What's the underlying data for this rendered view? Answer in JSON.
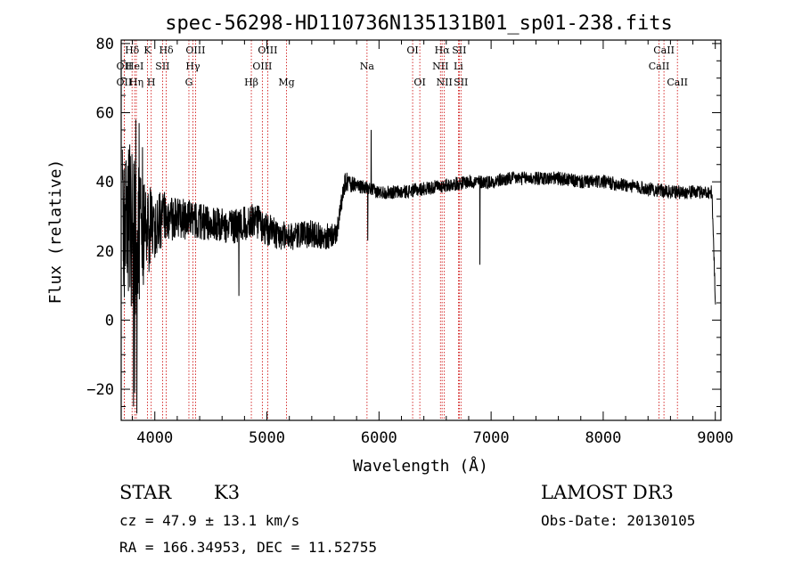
{
  "chart_data": {
    "type": "line",
    "title": "spec-56298-HD110736N135131B01_sp01-238.fits",
    "xlabel": "Wavelength (Å)",
    "ylabel": "Flux (relative)",
    "xlim": [
      3700,
      9050
    ],
    "ylim": [
      -29,
      81
    ],
    "x_ticks": [
      4000,
      5000,
      6000,
      7000,
      8000,
      9000
    ],
    "y_ticks": [
      -20,
      0,
      20,
      40,
      60,
      80
    ],
    "x_tick_labels": [
      "4000",
      "5000",
      "6000",
      "7000",
      "8000",
      "9000"
    ],
    "y_tick_labels": [
      "−20",
      "0",
      "20",
      "40",
      "60",
      "80"
    ],
    "spectrum_anchors": [
      [
        3700,
        30,
        24
      ],
      [
        3800,
        25,
        26
      ],
      [
        3900,
        25,
        16
      ],
      [
        4000,
        28,
        10
      ],
      [
        4100,
        30,
        7
      ],
      [
        4300,
        29,
        6
      ],
      [
        4500,
        28,
        5
      ],
      [
        4700,
        27,
        5
      ],
      [
        4900,
        29,
        5
      ],
      [
        5000,
        26,
        5
      ],
      [
        5200,
        24,
        4
      ],
      [
        5400,
        25,
        4
      ],
      [
        5550,
        24,
        4
      ],
      [
        5620,
        25,
        3
      ],
      [
        5660,
        33,
        3
      ],
      [
        5700,
        40,
        3
      ],
      [
        5800,
        39,
        2
      ],
      [
        5900,
        38,
        2
      ],
      [
        6000,
        37,
        2
      ],
      [
        6200,
        37,
        2
      ],
      [
        6400,
        38,
        2
      ],
      [
        6600,
        39,
        2
      ],
      [
        6800,
        40,
        2
      ],
      [
        7000,
        40,
        2
      ],
      [
        7200,
        41,
        2
      ],
      [
        7400,
        41,
        2
      ],
      [
        7600,
        41,
        2
      ],
      [
        7800,
        40,
        2
      ],
      [
        8000,
        40,
        2
      ],
      [
        8200,
        39,
        2
      ],
      [
        8400,
        38,
        2
      ],
      [
        8600,
        37,
        2
      ],
      [
        8800,
        37,
        2
      ],
      [
        8970,
        37,
        2
      ],
      [
        9000,
        6,
        2
      ]
    ],
    "spikes": [
      [
        3830,
        58
      ],
      [
        3860,
        57
      ],
      [
        3890,
        50
      ],
      [
        3820,
        -21
      ],
      [
        3810,
        -25
      ],
      [
        3840,
        -27
      ],
      [
        4750,
        7
      ],
      [
        5900,
        23
      ],
      [
        5930,
        55
      ],
      [
        6900,
        16
      ]
    ],
    "lines": [
      {
        "label": "Hδ",
        "wave": 3797,
        "row": 0
      },
      {
        "label": "OII",
        "wave": 3727,
        "row": 1
      },
      {
        "label": "OII",
        "wave": 3727,
        "row": 2
      },
      {
        "label": "HeI",
        "wave": 3820,
        "row": 1
      },
      {
        "label": "Hη",
        "wave": 3835,
        "row": 2
      },
      {
        "label": "K",
        "wave": 3934,
        "row": 0
      },
      {
        "label": "SII",
        "wave": 4069,
        "row": 1
      },
      {
        "label": "H",
        "wave": 3968,
        "row": 2
      },
      {
        "label": "Hδ",
        "wave": 4102,
        "row": 0
      },
      {
        "label": "OIII",
        "wave": 4363,
        "row": 0
      },
      {
        "label": "Hγ",
        "wave": 4340,
        "row": 1
      },
      {
        "label": "G",
        "wave": 4304,
        "row": 2
      },
      {
        "label": "Hβ",
        "wave": 4861,
        "row": 2
      },
      {
        "label": "OIII",
        "wave": 5007,
        "row": 0
      },
      {
        "label": "OIII",
        "wave": 4959,
        "row": 1
      },
      {
        "label": "Mg",
        "wave": 5175,
        "row": 2
      },
      {
        "label": "Na",
        "wave": 5893,
        "row": 1
      },
      {
        "label": "OI",
        "wave": 6300,
        "row": 0
      },
      {
        "label": "OI",
        "wave": 6364,
        "row": 2
      },
      {
        "label": "Hα",
        "wave": 6563,
        "row": 0
      },
      {
        "label": "SII",
        "wave": 6716,
        "row": 0
      },
      {
        "label": "NII",
        "wave": 6548,
        "row": 1
      },
      {
        "label": "Li",
        "wave": 6708,
        "row": 1
      },
      {
        "label": "NII",
        "wave": 6583,
        "row": 2
      },
      {
        "label": "SII",
        "wave": 6731,
        "row": 2
      },
      {
        "label": "CaII",
        "wave": 8542,
        "row": 0
      },
      {
        "label": "CaII",
        "wave": 8498,
        "row": 1
      },
      {
        "label": "CaII",
        "wave": 8662,
        "row": 2
      }
    ]
  },
  "info": {
    "object_class": "STAR",
    "subclass": "K3",
    "survey": "LAMOST DR3",
    "redshift": "cz = 47.9 ± 13.1 km/s",
    "obs_date": "Obs-Date: 20130105",
    "coords": "RA = 166.34953, DEC =  11.52755"
  }
}
